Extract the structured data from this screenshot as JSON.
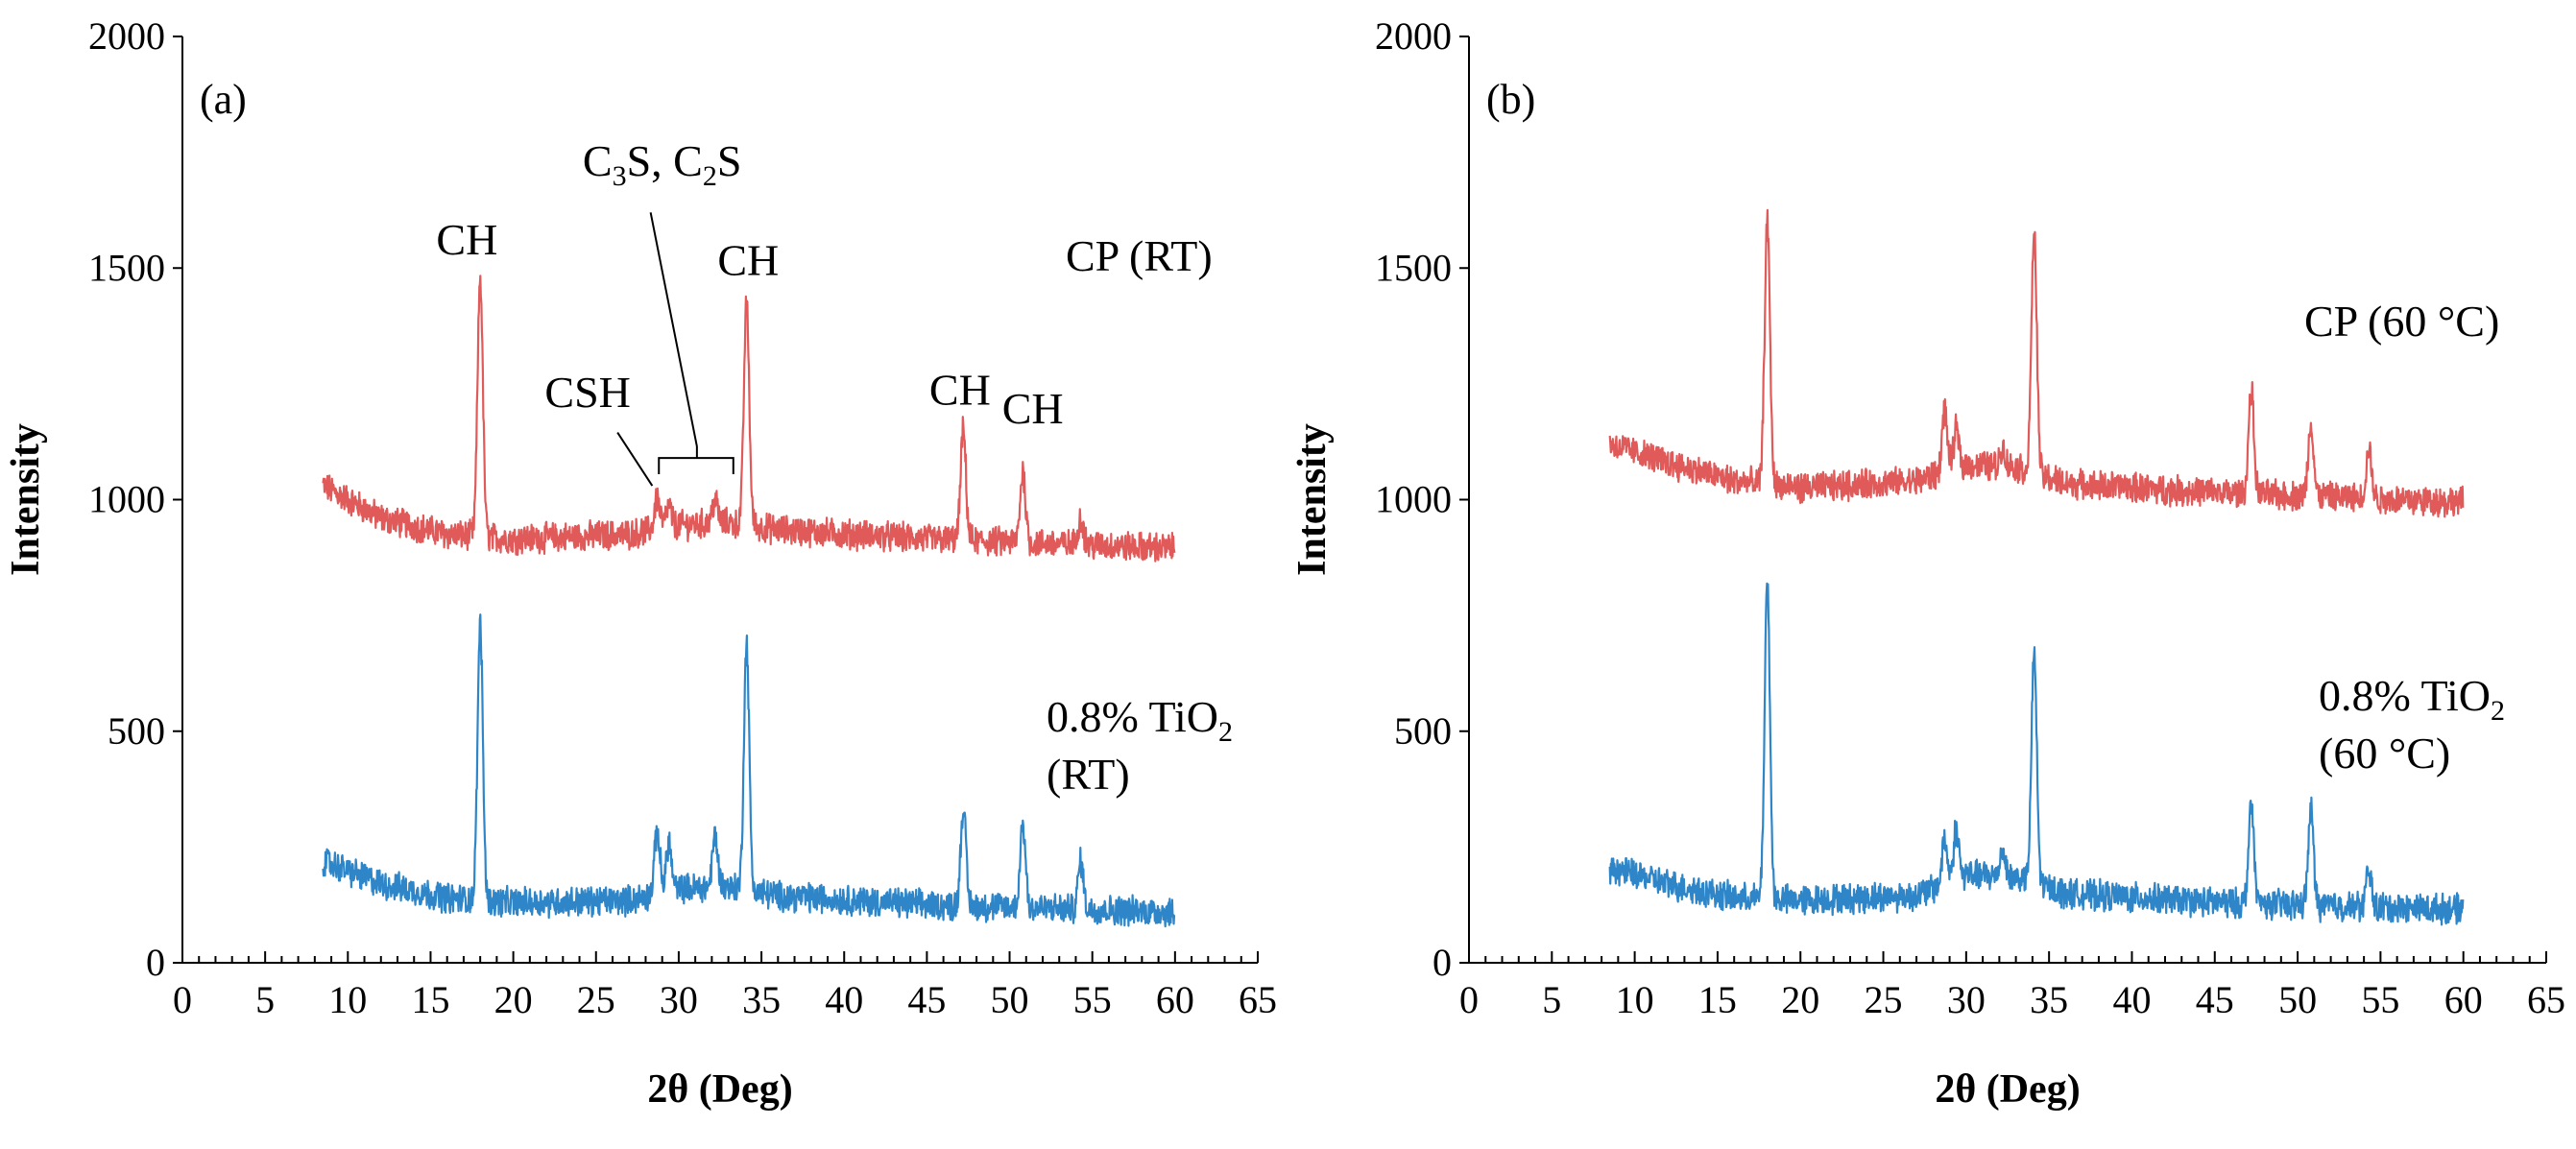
{
  "chart_data": [
    {
      "type": "line",
      "panel_label": "(a)",
      "xlabel": "2θ (Deg)",
      "ylabel": "Intensity",
      "xlim": [
        0,
        65
      ],
      "ylim": [
        0,
        2000
      ],
      "x_ticks": [
        0,
        5,
        10,
        15,
        20,
        25,
        30,
        35,
        40,
        45,
        50,
        55,
        60,
        65
      ],
      "y_ticks": [
        0,
        500,
        1000,
        1500,
        2000
      ],
      "grid": false,
      "series": [
        {
          "label_lines": [
            "CP (RT)"
          ],
          "color": "#e05a5a",
          "x_range": [
            8.5,
            60
          ],
          "baseline": [
            [
              8.5,
              1030
            ],
            [
              12,
              960
            ],
            [
              16,
              925
            ],
            [
              20,
              915
            ],
            [
              27,
              925
            ],
            [
              30,
              945
            ],
            [
              33,
              950
            ],
            [
              36,
              935
            ],
            [
              45,
              915
            ],
            [
              60,
              895
            ]
          ],
          "peaks": [
            [
              18.0,
              1480
            ],
            [
              28.7,
              1005
            ],
            [
              29.4,
              985
            ],
            [
              32.2,
              1000
            ],
            [
              34.1,
              1425
            ],
            [
              47.2,
              1150
            ],
            [
              50.8,
              1060
            ],
            [
              54.3,
              960
            ]
          ],
          "noise": 28
        },
        {
          "label_lines": [
            "0.8% TiO2",
            "(RT)"
          ],
          "color": "#2e86c8",
          "x_range": [
            8.5,
            60
          ],
          "baseline": [
            [
              8.5,
              220
            ],
            [
              12,
              170
            ],
            [
              16,
              140
            ],
            [
              20,
              130
            ],
            [
              27,
              135
            ],
            [
              30,
              160
            ],
            [
              33,
              165
            ],
            [
              36,
              145
            ],
            [
              45,
              125
            ],
            [
              60,
              110
            ]
          ],
          "peaks": [
            [
              18.0,
              730
            ],
            [
              28.7,
              285
            ],
            [
              29.4,
              260
            ],
            [
              32.2,
              275
            ],
            [
              34.1,
              690
            ],
            [
              47.2,
              335
            ],
            [
              50.8,
              300
            ],
            [
              54.3,
              220
            ]
          ],
          "noise": 28
        }
      ],
      "annotations": [
        {
          "text": "CH",
          "x": 17.2,
          "y": 1530
        },
        {
          "text": "CH",
          "x": 34.2,
          "y": 1485
        },
        {
          "text": "CH",
          "x": 47.0,
          "y": 1205
        },
        {
          "text": "CH",
          "x": 51.4,
          "y": 1165
        },
        {
          "text": "CSH",
          "x": 24.5,
          "y": 1200
        },
        {
          "text": "C3S, C2S",
          "x": 29.0,
          "y": 1700
        }
      ]
    },
    {
      "type": "line",
      "panel_label": "(b)",
      "xlabel": "2θ (Deg)",
      "ylabel": "Intensity",
      "xlim": [
        0,
        65
      ],
      "ylim": [
        0,
        2000
      ],
      "x_ticks": [
        0,
        5,
        10,
        15,
        20,
        25,
        30,
        35,
        40,
        45,
        50,
        55,
        60,
        65
      ],
      "y_ticks": [
        0,
        500,
        1000,
        1500,
        2000
      ],
      "grid": false,
      "series": [
        {
          "label_lines": [
            "CP (60 °C)"
          ],
          "color": "#e05a5a",
          "x_range": [
            8.5,
            60
          ],
          "baseline": [
            [
              8.5,
              1120
            ],
            [
              12,
              1080
            ],
            [
              16,
              1040
            ],
            [
              20,
              1025
            ],
            [
              27,
              1040
            ],
            [
              30,
              1075
            ],
            [
              33,
              1070
            ],
            [
              36,
              1035
            ],
            [
              45,
              1015
            ],
            [
              60,
              995
            ]
          ],
          "peaks": [
            [
              18.0,
              1600
            ],
            [
              28.7,
              1190
            ],
            [
              29.4,
              1150
            ],
            [
              32.2,
              1110
            ],
            [
              34.1,
              1580
            ],
            [
              47.2,
              1235
            ],
            [
              50.8,
              1165
            ],
            [
              54.3,
              1110
            ]
          ],
          "noise": 28
        },
        {
          "label_lines": [
            "0.8% TiO2",
            "(60 °C)"
          ],
          "color": "#2e86c8",
          "x_range": [
            8.5,
            60
          ],
          "baseline": [
            [
              8.5,
              205
            ],
            [
              12,
              170
            ],
            [
              16,
              140
            ],
            [
              20,
              135
            ],
            [
              27,
              145
            ],
            [
              30,
              190
            ],
            [
              33,
              185
            ],
            [
              36,
              150
            ],
            [
              45,
              130
            ],
            [
              60,
              115
            ]
          ],
          "peaks": [
            [
              18.0,
              820
            ],
            [
              28.7,
              265
            ],
            [
              29.4,
              290
            ],
            [
              32.2,
              245
            ],
            [
              34.1,
              665
            ],
            [
              47.2,
              340
            ],
            [
              50.8,
              330
            ],
            [
              54.3,
              200
            ]
          ],
          "noise": 28
        }
      ],
      "annotations": []
    }
  ]
}
